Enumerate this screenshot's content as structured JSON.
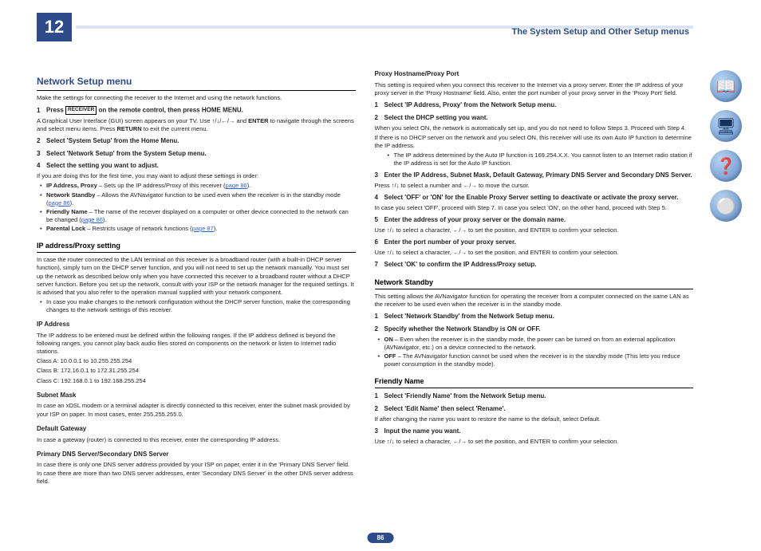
{
  "chapter": "12",
  "header_title": "The System Setup and Other Setup menus",
  "page_number": "86",
  "left": {
    "h2": "Network Setup menu",
    "intro": "Make the settings for connecting the receiver to the Internet and using the network functions.",
    "step1": "Press",
    "step1_kbd": "RECEIVER",
    "step1_rest": "on the remote control, then press HOME MENU.",
    "step1_body_a": "A Graphical User Interface (GUI) screen appears on your TV. Use ↑/↓/←/→ and ",
    "step1_body_enter": "ENTER",
    "step1_body_b": " to navigate through the screens and select menu items. Press ",
    "step1_body_return": "RETURN",
    "step1_body_c": " to exit the current menu.",
    "step2": "Select 'System Setup' from the Home Menu.",
    "step3": "Select 'Network Setup' from the System Setup menu.",
    "step4": "Select the setting you want to adjust.",
    "step4_body": "If you are doing this for the first time, you may want to adjust these settings in order:",
    "b1_a": "IP Address, Proxy",
    "b1_b": " – Sets up the IP address/Proxy of this receiver (",
    "b1_link": "page 86",
    "b1_c": ").",
    "b2_a": "Network Standby",
    "b2_b": " – Allows the AVNavigator function to be used even when the receiver is in the standby mode (",
    "b2_link": "page 86",
    "b2_c": ").",
    "b3_a": "Friendly Name",
    "b3_b": " – The name of the receiver displayed on a computer or other device connected to the network can be changed (",
    "b3_link": "page 86",
    "b3_c": ").",
    "b4_a": "Parental Lock",
    "b4_b": " – Restricts usage of network functions (",
    "b4_link": "page 87",
    "b4_c": ").",
    "h3_ip": "IP address/Proxy setting",
    "ip_p1": "In case the router connected to the LAN terminal on this receiver is a broadband router (with a built-in DHCP server function), simply turn on the DHCP server function, and you will not need to set up the network manually. You must set up the network as described below only when you have connected this receiver to a broadband router without a DHCP server function. Before you set up the network, consult with your ISP or the network manager for the required settings. It is advised that you also refer to the operation manual supplied with your network component.",
    "ip_b1": "In case you make changes to the network configuration without the DHCP server function, make the corresponding changes to the network settings of this receiver.",
    "h4_ip": "IP Address",
    "ip_addr_p": "The IP address to be entered must be defined within the following ranges. If the IP address defined is beyond the following ranges, you cannot play back audio files stored on components on the network or listen to Internet radio stations.",
    "class_a": "Class A: 10.0.0.1 to 10.255.255.254",
    "class_b": "Class B: 172.16.0.1 to 172.31.255.254",
    "class_c": "Class C: 192.168.0.1 to 192.168.255.254",
    "h4_sm": "Subnet Mask",
    "sm_p": "In case an xDSL modem or a terminal adapter is directly connected to this receiver, enter the subnet mask provided by your ISP on paper. In most cases, enter 255.255.255.0.",
    "h4_gw": "Default Gateway",
    "gw_p": "In case a gateway (router) is connected to this receiver, enter the corresponding IP address.",
    "h4_dns": "Primary DNS Server/Secondary DNS Server",
    "dns_p": "In case there is only one DNS server address provided by your ISP on paper, enter it in the 'Primary DNS Server' field. In case there are more than two DNS server addresses, enter 'Secondary DNS Server' in the other DNS server address field."
  },
  "right": {
    "h4_proxy": "Proxy Hostname/Proxy Port",
    "proxy_p": "This setting is required when you connect this receiver to the Internet via a proxy server. Enter the IP address of your proxy server in the 'Proxy Hostname' field. Also, enter the port number of your proxy server in the 'Proxy Port' field.",
    "ps1": "Select 'IP Address, Proxy' from the Network Setup menu.",
    "ps2": "Select the DHCP setting you want.",
    "ps2_body": "When you select ON, the network is automatically set up, and you do not need to follow Steps 3. Proceed with Step 4.",
    "ps2_body2": "If there is no DHCP server on the network and you select ON, this receiver will use its own Auto IP function to determine the IP address.",
    "ps2_bullet": "The IP address determined by the Auto IP function is 169.254.X.X. You cannot listen to an Internet radio station if the IP address is set for the Auto IP function.",
    "ps3": "Enter the IP Address, Subnet Mask, Default Gateway, Primary DNS Server and Secondary DNS Server.",
    "ps3_body": "Press ↑/↓ to select a number and ←/→ to move the cursor.",
    "ps4": "Select 'OFF' or 'ON' for the Enable Proxy Server setting to deactivate or activate the proxy server.",
    "ps4_body": "In case you select 'OFF', proceed with Step 7. In case you select 'ON', on the other hand, proceed with Step 5.",
    "ps5": "Enter the address of your proxy server or the domain name.",
    "ps5_body": "Use ↑/↓ to select a character, ←/→ to set the position, and ENTER to confirm your selection.",
    "ps6": "Enter the port number of your proxy server.",
    "ps6_body": "Use ↑/↓ to select a character, ←/→ to set the position, and ENTER to confirm your selection.",
    "ps7": "Select 'OK' to confirm the IP Address/Proxy setup.",
    "h3_ns": "Network Standby",
    "ns_p": "This setting allows the AVNavigator function for operating the receiver from a computer connected on the same LAN as the receiver to be used even when the receiver is in the standby mode.",
    "ns1": "Select 'Network Standby' from the Network Setup menu.",
    "ns2": "Specify whether the Network Standby is ON or OFF.",
    "ns_b1_a": "ON",
    "ns_b1_b": " – Even when the receiver is in the standby mode, the power can be turned on from an external application (AVNavigator, etc.) on a device connected to the network.",
    "ns_b2_a": "OFF",
    "ns_b2_b": " – The AVNavigator function cannot be used when the receiver is in the standby mode (This lets you reduce power consumption in the standby mode).",
    "h3_fn": "Friendly Name",
    "fn1": "Select 'Friendly Name' from the Network Setup menu.",
    "fn2": "Select 'Edit Name' then select 'Rename'.",
    "fn2_body": "If after changing the name you want to restore the name to the default, select Default.",
    "fn3": "Input the name you want.",
    "fn3_body": "Use ↑/↓ to select a character, ←/→ to set the position, and ENTER to confirm your selection."
  },
  "icons": [
    "📖",
    "🖥",
    "❓",
    "⚪"
  ]
}
